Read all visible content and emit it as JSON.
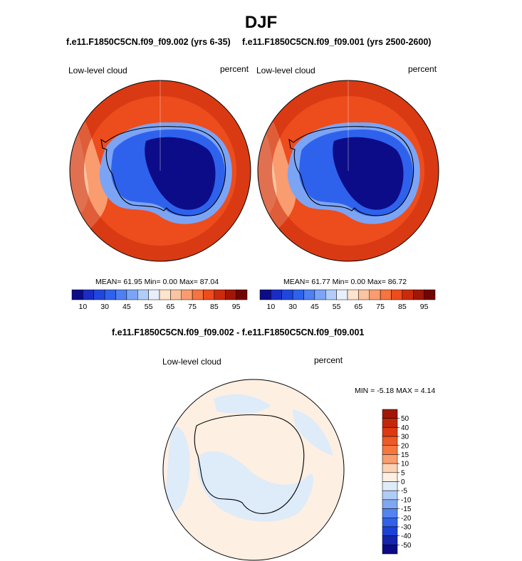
{
  "page": {
    "title": "DJF"
  },
  "chart_data": [
    {
      "type": "heatmap",
      "projection": "south-polar-stereographic",
      "title": "f.e11.F1850C5CN.f09_f09.002 (yrs 6-35)",
      "left_label": "Low-level cloud",
      "right_label": "percent",
      "stats_text": "MEAN=  61.95  Min=   0.00  Max=  87.04",
      "stats": {
        "mean": 61.95,
        "min": 0.0,
        "max": 87.04
      },
      "colorbar": {
        "orientation": "horizontal",
        "levels": [
          10,
          20,
          30,
          40,
          45,
          50,
          55,
          60,
          65,
          70,
          75,
          80,
          85,
          90,
          95
        ],
        "tick_labels": [
          "10",
          "30",
          "45",
          "55",
          "65",
          "75",
          "85",
          "95"
        ],
        "colors": [
          "#0d0c88",
          "#1a2cc4",
          "#1f47de",
          "#2f62ec",
          "#4e80f2",
          "#7ca4f5",
          "#b2cdf8",
          "#e8effb",
          "#fde4cc",
          "#fbc4a2",
          "#f99c70",
          "#f6743f",
          "#ed4c1c",
          "#cb2b0c",
          "#a11706",
          "#730404"
        ]
      }
    },
    {
      "type": "heatmap",
      "projection": "south-polar-stereographic",
      "title": "f.e11.F1850C5CN.f09_f09.001 (yrs 2500-2600)",
      "left_label": "Low-level cloud",
      "right_label": "percent",
      "stats_text": "MEAN=  61.77  Min=   0.00  Max=  86.72",
      "stats": {
        "mean": 61.77,
        "min": 0.0,
        "max": 86.72
      },
      "colorbar": {
        "orientation": "horizontal",
        "levels": [
          10,
          20,
          30,
          40,
          45,
          50,
          55,
          60,
          65,
          70,
          75,
          80,
          85,
          90,
          95
        ],
        "tick_labels": [
          "10",
          "30",
          "45",
          "55",
          "65",
          "75",
          "85",
          "95"
        ],
        "colors": [
          "#0d0c88",
          "#1a2cc4",
          "#1f47de",
          "#2f62ec",
          "#4e80f2",
          "#7ca4f5",
          "#b2cdf8",
          "#e8effb",
          "#fde4cc",
          "#fbc4a2",
          "#f99c70",
          "#f6743f",
          "#ed4c1c",
          "#cb2b0c",
          "#a11706",
          "#730404"
        ]
      }
    },
    {
      "type": "heatmap",
      "projection": "south-polar-stereographic",
      "title": "f.e11.F1850C5CN.f09_f09.002 - f.e11.F1850C5CN.f09_f09.001",
      "left_label": "Low-level cloud",
      "right_label": "percent",
      "stats_text": "MIN = -5.18 MAX =  4.14",
      "stats": {
        "min": -5.18,
        "max": 4.14
      },
      "colorbar": {
        "orientation": "vertical",
        "levels": [
          50,
          40,
          30,
          20,
          15,
          10,
          5,
          0,
          -5,
          -10,
          -15,
          -20,
          -30,
          -40,
          -50
        ],
        "tick_labels": [
          "50",
          "40",
          "30",
          "20",
          "15",
          "10",
          "5",
          "0",
          "-5",
          "-10",
          "-15",
          "-20",
          "-30",
          "-40",
          "-50"
        ],
        "colors": [
          "#a11706",
          "#c4280b",
          "#dd3a12",
          "#ee5a26",
          "#f5773f",
          "#f99e6f",
          "#fcd2b3",
          "#fdefe2",
          "#deebf9",
          "#b0ccf6",
          "#7fa7f2",
          "#5383ee",
          "#2f62e9",
          "#1c41d6",
          "#1424ab",
          "#0b0b86"
        ]
      }
    }
  ]
}
